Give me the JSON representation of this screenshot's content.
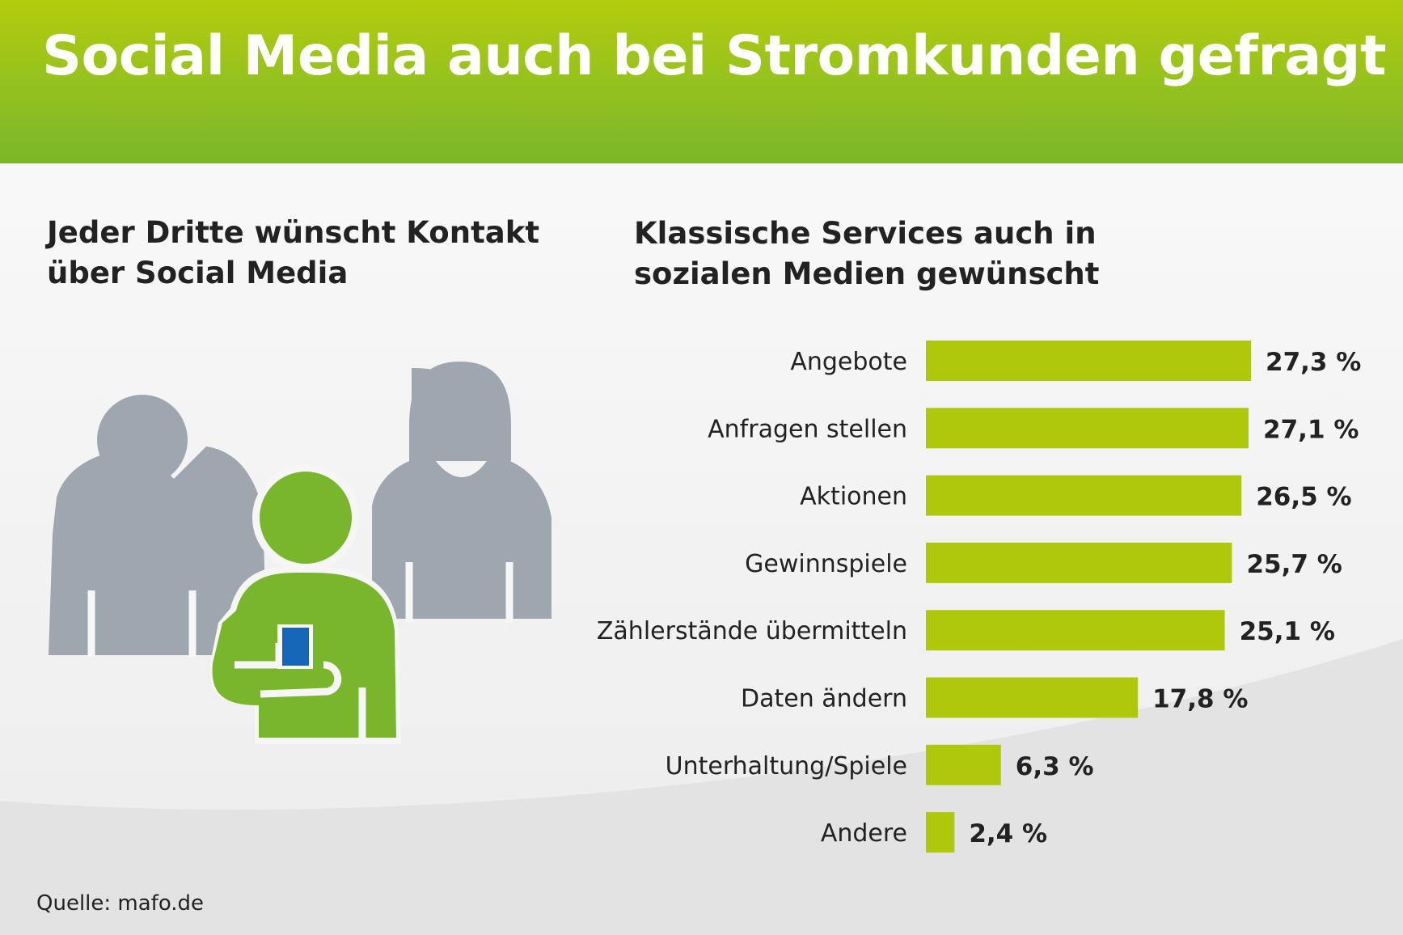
{
  "header": {
    "title": "Social Media auch bei Stromkunden gefragt"
  },
  "left_section": {
    "title_lines": [
      "Jeder Dritte wünscht Kontakt",
      "über Social Media"
    ],
    "illustration": {
      "icon": "people-group-icon",
      "person_colors": [
        "#9ea6b0",
        "#7ab62b",
        "#1565b8"
      ]
    }
  },
  "right_section": {
    "title_lines": [
      "Klassische Services auch in",
      "sozialen Medien gewünscht"
    ]
  },
  "chart_data": {
    "type": "bar",
    "orientation": "horizontal",
    "title": "Klassische Services auch in sozialen Medien gewünscht",
    "categories": [
      "Angebote",
      "Anfragen stellen",
      "Aktionen",
      "Gewinnspiele",
      "Zählerstände übermitteln",
      "Daten ändern",
      "Unterhaltung/Spiele",
      "Andere"
    ],
    "values": [
      27.3,
      27.1,
      26.5,
      25.7,
      25.1,
      17.8,
      6.3,
      2.4
    ],
    "value_labels": [
      "27,3 %",
      "27,1 %",
      "26,5 %",
      "25,7 %",
      "25,1 %",
      "17,8 %",
      "6,3 %",
      "2,4 %"
    ],
    "unit": "%",
    "xlim": [
      0,
      27.3
    ],
    "grid": false,
    "bar_color": "#b0c80c"
  },
  "footer": {
    "source": "Quelle: mafo.de"
  }
}
